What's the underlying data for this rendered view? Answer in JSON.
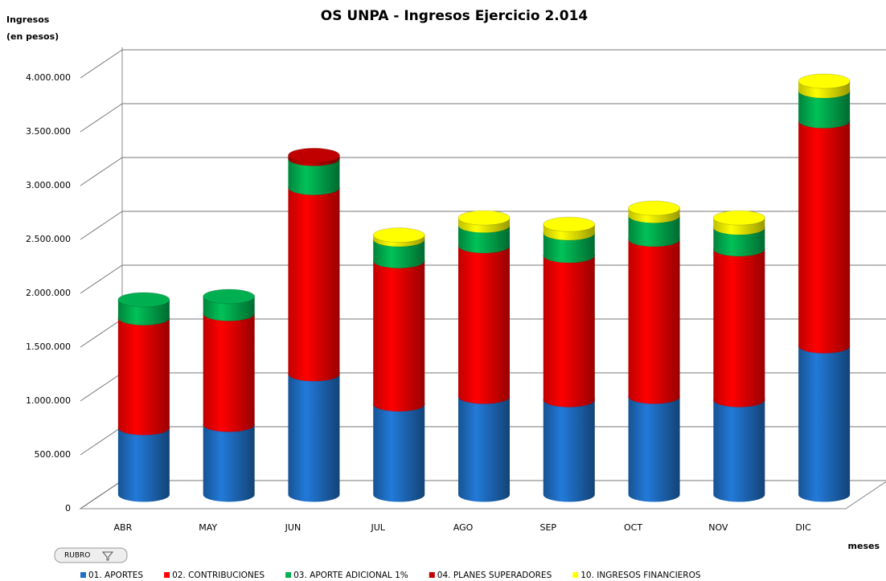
{
  "chart_data": {
    "type": "bar3d_stacked_cylinder",
    "title": "OS UNPA - Ingresos Ejercicio 2.014",
    "ylabel": [
      "Ingresos",
      "(en pesos)"
    ],
    "xlabel": "meses",
    "filter_button": "RUBRO",
    "categories": [
      "ABR",
      "MAY",
      "JUN",
      "JUL",
      "AGO",
      "SEP",
      "OCT",
      "NOV",
      "DIC"
    ],
    "series": [
      {
        "name": "01. APORTES",
        "color": "#1f6fc5",
        "values": [
          620000,
          650000,
          1120000,
          840000,
          910000,
          880000,
          910000,
          880000,
          1380000
        ]
      },
      {
        "name": "02. CONTRIBUCIONES",
        "color": "#ff0000",
        "values": [
          1020000,
          1030000,
          1730000,
          1330000,
          1400000,
          1340000,
          1460000,
          1400000,
          2090000
        ]
      },
      {
        "name": "03. APORTE ADICIONAL 1%",
        "color": "#00b050",
        "values": [
          170000,
          160000,
          270000,
          200000,
          190000,
          210000,
          220000,
          200000,
          280000
        ]
      },
      {
        "name": "04. PLANES SUPERADORES",
        "color": "#c00000",
        "values": [
          0,
          0,
          30000,
          0,
          0,
          0,
          0,
          0,
          0
        ]
      },
      {
        "name": "10. INGRESOS FINANCIEROS",
        "color": "#ffff00",
        "values": [
          0,
          0,
          0,
          40000,
          70000,
          80000,
          70000,
          90000,
          90000
        ]
      }
    ],
    "ylim": [
      0,
      4000000
    ],
    "yticks": [
      0,
      {
        "value": 500000,
        "label": "500.000"
      },
      {
        "value": 1000000,
        "label": "1.000.000"
      },
      {
        "value": 1500000,
        "label": "1.500.000"
      },
      {
        "value": 2000000,
        "label": "2.000.000"
      },
      {
        "value": 2500000,
        "label": "2.500.000"
      },
      {
        "value": 3000000,
        "label": "3.000.000"
      },
      {
        "value": 3500000,
        "label": "3.500.000"
      },
      {
        "value": 4000000,
        "label": "4.000.000"
      }
    ],
    "grid": true
  }
}
